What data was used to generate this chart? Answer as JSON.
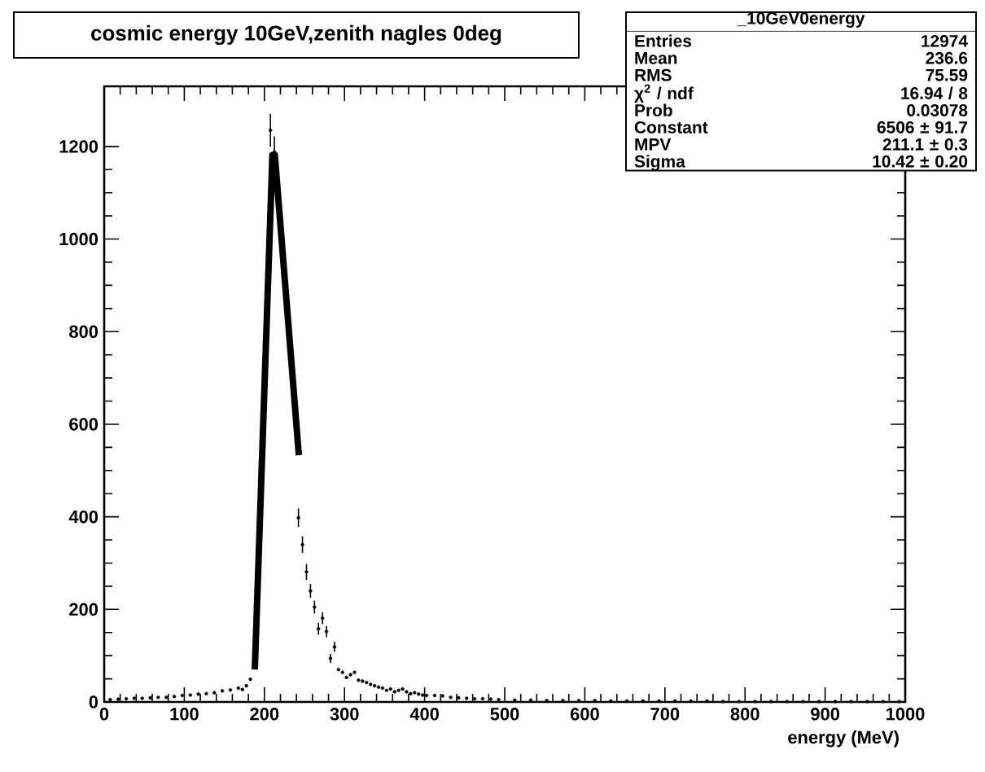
{
  "chart_data": {
    "type": "scatter",
    "title": "cosmic energy 10GeV,zenith nagles 0deg",
    "xlabel": "energy (MeV)",
    "xlim": [
      0,
      1000
    ],
    "ylim": [
      0,
      1330
    ],
    "xticks": [
      0,
      100,
      200,
      300,
      400,
      500,
      600,
      700,
      800,
      900,
      1000
    ],
    "yticks": [
      0,
      200,
      400,
      600,
      800,
      1000,
      1200
    ],
    "grid": false,
    "annotations": [
      "_10GeV0energy",
      "Entries",
      "12974",
      "Mean",
      "236.6",
      "RMS",
      "75.59",
      "χ$^{2}$ / ndf",
      "16.94 / 8",
      "Prob",
      "0.03078",
      "Constant",
      "6506 ± 91.7",
      "MPV",
      "211.1 ± 0.3",
      "Sigma",
      "10.42 ± 0.20"
    ],
    "series": [
      {
        "marker": "circle",
        "color": "#000000",
        "x": [
          7.5,
          17.5,
          27.5,
          37.5,
          47.5,
          57.5,
          67.5,
          77.5,
          87.5,
          97.5,
          107.5,
          117.5,
          127.5,
          137.5,
          147.5,
          157.5,
          167.5,
          172.5,
          177.5,
          182.5,
          207.5,
          212.5,
          242.5,
          247.5,
          252.5,
          257.5,
          262.5,
          267.5,
          272.5,
          277.5,
          282.5,
          287.5,
          292.5,
          297.5,
          302.5,
          307.5,
          312.5,
          317.5,
          322.5,
          327.5,
          332.5,
          337.5,
          342.5,
          347.5,
          352.5,
          357.5,
          362.5,
          367.5,
          372.5,
          377.5,
          382.5,
          387.5,
          392.5,
          397.5,
          402.5,
          412.5,
          422.5,
          432.5,
          442.5,
          452.5,
          462.5,
          472.5,
          482.5,
          492.5,
          512.5,
          532.5,
          552.5,
          572.5,
          592.5,
          612.5,
          632.5,
          652.5,
          672.5,
          692.5,
          712.5,
          732.5,
          752.5,
          772.5,
          792.5,
          812.5,
          832.5,
          852.5,
          872.5,
          892.5,
          912.5,
          932.5,
          952.5,
          972.5,
          992.5
        ],
        "values": [
          5,
          6,
          7,
          8,
          8,
          9,
          10,
          10,
          12,
          14,
          15,
          17,
          18,
          20,
          24,
          26,
          30,
          27,
          35,
          49,
          1235,
          1188,
          398,
          340,
          281,
          240,
          205,
          158,
          181,
          152,
          94,
          119,
          70,
          64,
          53,
          59,
          64,
          47,
          45,
          42,
          38,
          35,
          32,
          30,
          25,
          28,
          22,
          25,
          28,
          22,
          18,
          20,
          17,
          15,
          14,
          14,
          13,
          10,
          9,
          8,
          7,
          7,
          6,
          5,
          4,
          4,
          3,
          3,
          3,
          3,
          2,
          2,
          2,
          2,
          2,
          2,
          2,
          1,
          1,
          1,
          1,
          1,
          1,
          1,
          1,
          1,
          1,
          1,
          1
        ],
        "errors": [
          null,
          null,
          null,
          null,
          null,
          null,
          null,
          null,
          null,
          null,
          null,
          null,
          null,
          null,
          null,
          null,
          null,
          null,
          null,
          null,
          35,
          34,
          20,
          18,
          17,
          15,
          14,
          13,
          13,
          12,
          10,
          11,
          null,
          null,
          null,
          null,
          null,
          null,
          null,
          null,
          null,
          null,
          null,
          null,
          null,
          null,
          null,
          null,
          null,
          null,
          null,
          null,
          null,
          null,
          null,
          null,
          null,
          null,
          null,
          null,
          null,
          null,
          null,
          null,
          null,
          null,
          null,
          null,
          null,
          null,
          null,
          null,
          null,
          null,
          null,
          null,
          null,
          null,
          null,
          null,
          null,
          null,
          null,
          null,
          null,
          null,
          null,
          null,
          null
        ]
      },
      {
        "type": "line",
        "marker": "none",
        "color": "#000000",
        "x": [
          188,
          210,
          213,
          243
        ],
        "values": [
          70,
          1182,
          1182,
          533
        ]
      }
    ]
  }
}
